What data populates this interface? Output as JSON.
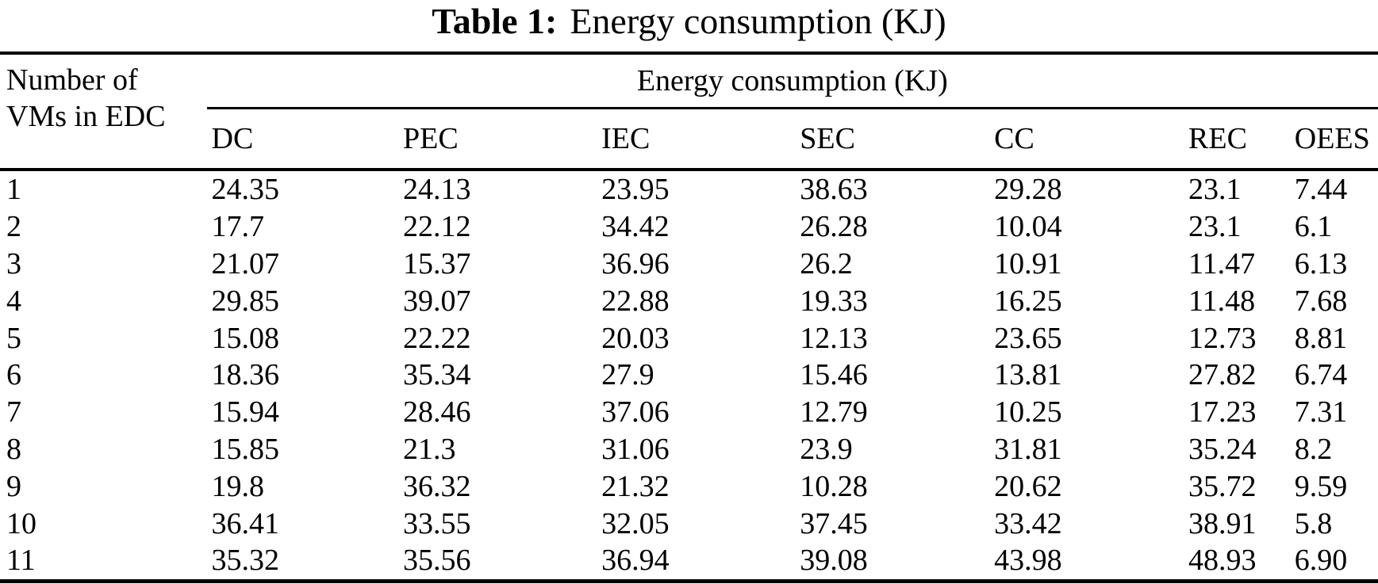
{
  "caption": {
    "label": "Table 1:",
    "text": "Energy consumption (KJ)"
  },
  "table": {
    "row_header_line1": "Number of",
    "row_header_line2": "VMs in EDC",
    "group_header": "Energy consumption (KJ)",
    "columns": [
      "DC",
      "PEC",
      "IEC",
      "SEC",
      "CC",
      "REC",
      "OEES"
    ],
    "rows": [
      {
        "vms": "1",
        "values": [
          "24.35",
          "24.13",
          "23.95",
          "38.63",
          "29.28",
          "23.1",
          "7.44"
        ]
      },
      {
        "vms": "2",
        "values": [
          "17.7",
          "22.12",
          "34.42",
          "26.28",
          "10.04",
          "23.1",
          "6.1"
        ]
      },
      {
        "vms": "3",
        "values": [
          "21.07",
          "15.37",
          "36.96",
          "26.2",
          "10.91",
          "11.47",
          "6.13"
        ]
      },
      {
        "vms": "4",
        "values": [
          "29.85",
          "39.07",
          "22.88",
          "19.33",
          "16.25",
          "11.48",
          "7.68"
        ]
      },
      {
        "vms": "5",
        "values": [
          "15.08",
          "22.22",
          "20.03",
          "12.13",
          "23.65",
          "12.73",
          "8.81"
        ]
      },
      {
        "vms": "6",
        "values": [
          "18.36",
          "35.34",
          "27.9",
          "15.46",
          "13.81",
          "27.82",
          "6.74"
        ]
      },
      {
        "vms": "7",
        "values": [
          "15.94",
          "28.46",
          "37.06",
          "12.79",
          "10.25",
          "17.23",
          "7.31"
        ]
      },
      {
        "vms": "8",
        "values": [
          "15.85",
          "21.3",
          "31.06",
          "23.9",
          "31.81",
          "35.24",
          "8.2"
        ]
      },
      {
        "vms": "9",
        "values": [
          "19.8",
          "36.32",
          "21.32",
          "10.28",
          "20.62",
          "35.72",
          "9.59"
        ]
      },
      {
        "vms": "10",
        "values": [
          "36.41",
          "33.55",
          "32.05",
          "37.45",
          "33.42",
          "38.91",
          "5.8"
        ]
      },
      {
        "vms": "11",
        "values": [
          "35.32",
          "35.56",
          "36.94",
          "39.08",
          "43.98",
          "48.93",
          "6.90"
        ]
      }
    ]
  },
  "chart_data": {
    "type": "table",
    "title": "Table 1: Energy consumption (KJ)",
    "row_label": "Number of VMs in EDC",
    "columns": [
      "DC",
      "PEC",
      "IEC",
      "SEC",
      "CC",
      "REC",
      "OEES"
    ],
    "x": [
      1,
      2,
      3,
      4,
      5,
      6,
      7,
      8,
      9,
      10,
      11
    ],
    "series": [
      {
        "name": "DC",
        "values": [
          24.35,
          17.7,
          21.07,
          29.85,
          15.08,
          18.36,
          15.94,
          15.85,
          19.8,
          36.41,
          35.32
        ]
      },
      {
        "name": "PEC",
        "values": [
          24.13,
          22.12,
          15.37,
          39.07,
          22.22,
          35.34,
          28.46,
          21.3,
          36.32,
          33.55,
          35.56
        ]
      },
      {
        "name": "IEC",
        "values": [
          23.95,
          34.42,
          36.96,
          22.88,
          20.03,
          27.9,
          37.06,
          31.06,
          21.32,
          32.05,
          36.94
        ]
      },
      {
        "name": "SEC",
        "values": [
          38.63,
          26.28,
          26.2,
          19.33,
          12.13,
          15.46,
          12.79,
          23.9,
          10.28,
          37.45,
          39.08
        ]
      },
      {
        "name": "CC",
        "values": [
          29.28,
          10.04,
          10.91,
          16.25,
          23.65,
          13.81,
          10.25,
          31.81,
          20.62,
          33.42,
          43.98
        ]
      },
      {
        "name": "REC",
        "values": [
          23.1,
          23.1,
          11.47,
          11.48,
          12.73,
          27.82,
          17.23,
          35.24,
          35.72,
          38.91,
          48.93
        ]
      },
      {
        "name": "OEES",
        "values": [
          7.44,
          6.1,
          6.13,
          7.68,
          8.81,
          6.74,
          7.31,
          8.2,
          9.59,
          5.8,
          6.9
        ]
      }
    ]
  }
}
